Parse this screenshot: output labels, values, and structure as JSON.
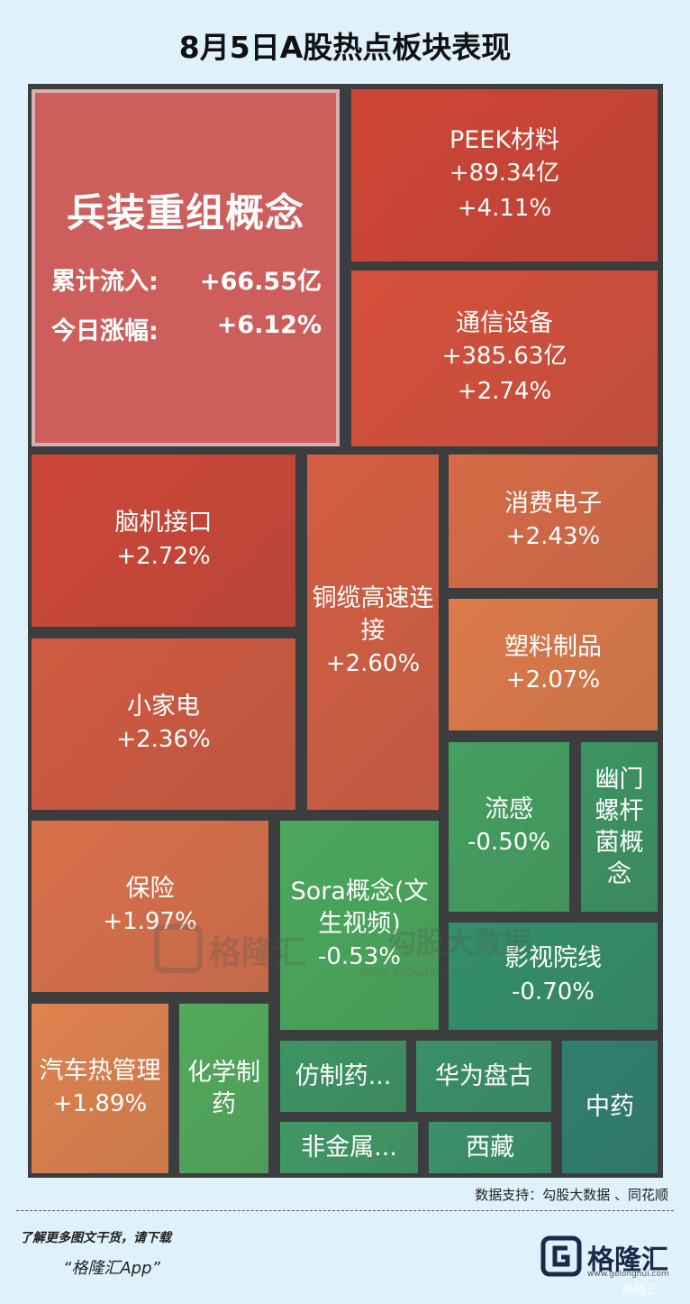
{
  "title": "8月5日A股热点板块表现",
  "featured": {
    "name": "兵装重组概念",
    "inflow_label": "累计流入:",
    "inflow": "+66.55亿",
    "change_label": "今日涨幅:",
    "change": "+6.12%"
  },
  "chart_data": {
    "type": "treemap",
    "title": "8月5日A股热点板块表现",
    "tiles": [
      {
        "name": "兵装重组概念",
        "change": "+6.12%",
        "inflow": "+66.55亿",
        "color": "#cd5e5c"
      },
      {
        "name": "PEEK材料",
        "inflow": "+89.34亿",
        "change": "+4.11%",
        "color": "#cf4535"
      },
      {
        "name": "通信设备",
        "inflow": "+385.63亿",
        "change": "+2.74%",
        "color": "#d5503b"
      },
      {
        "name": "脑机接口",
        "change": "+2.72%",
        "color": "#cd4737"
      },
      {
        "name": "铜缆高速连接",
        "change": "+2.60%",
        "color": "#d45e42"
      },
      {
        "name": "消费电子",
        "change": "+2.43%",
        "color": "#d76b46"
      },
      {
        "name": "小家电",
        "change": "+2.36%",
        "color": "#d05a40"
      },
      {
        "name": "塑料制品",
        "change": "+2.07%",
        "color": "#dc7a4a"
      },
      {
        "name": "保险",
        "change": "+1.97%",
        "color": "#d9704a"
      },
      {
        "name": "汽车热管理",
        "change": "+1.89%",
        "color": "#df824e"
      },
      {
        "name": "流感",
        "change": "-0.50%",
        "color": "#45a060"
      },
      {
        "name": "幽门螺杆菌概念",
        "change": "",
        "color": "#3c9462"
      },
      {
        "name": "Sora概念(文生视频)",
        "change": "-0.53%",
        "color": "#4aa85c"
      },
      {
        "name": "影视院线",
        "change": "-0.70%",
        "color": "#338f6a"
      },
      {
        "name": "化学制药",
        "change": "",
        "color": "#52aa5c"
      },
      {
        "name": "仿制药...",
        "change": "",
        "color": "#3d9463"
      },
      {
        "name": "华为盘古",
        "change": "",
        "color": "#3a9066"
      },
      {
        "name": "非金属...",
        "change": "",
        "color": "#409866"
      },
      {
        "name": "西藏",
        "change": "",
        "color": "#3a916a"
      },
      {
        "name": "中药",
        "change": "",
        "color": "#2f7f70"
      }
    ]
  },
  "watermark": {
    "brand": "格隆汇",
    "brand2": "勾股大数据",
    "url": "www.gogudata.com"
  },
  "footer": {
    "source": "数据支持：勾股大数据 、同花顺",
    "promo": "了解更多图文干货，请下载",
    "app_name": "“格隆汇App”",
    "brand": "格隆汇",
    "brand_url": "www.gelonghui.com",
    "corner_mark": "格隆汇"
  }
}
